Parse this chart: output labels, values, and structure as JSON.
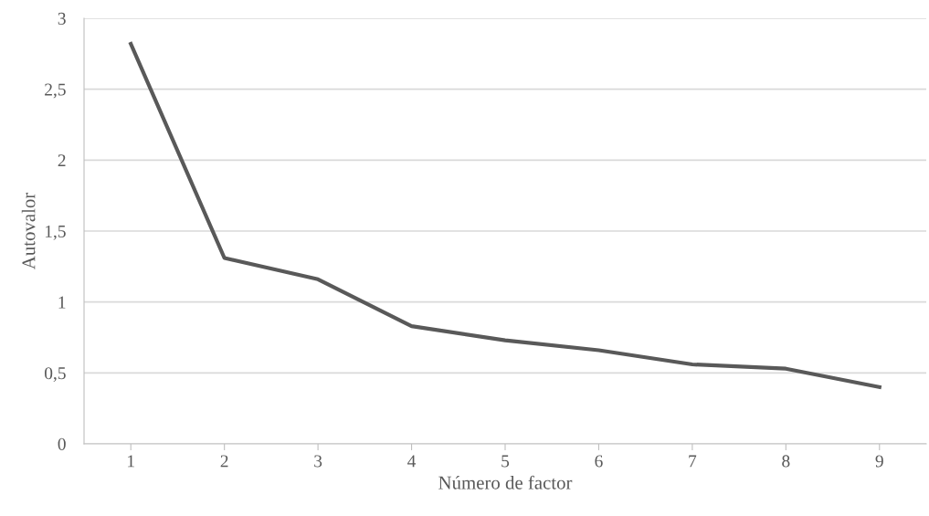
{
  "chart_data": {
    "type": "line",
    "xlabel": "Número de factor",
    "ylabel": "Autovalor",
    "categories": [
      "1",
      "2",
      "3",
      "4",
      "5",
      "6",
      "7",
      "8",
      "9"
    ],
    "series": [
      {
        "color": "#595959",
        "values": [
          2.82,
          1.31,
          1.16,
          0.83,
          0.73,
          0.66,
          0.56,
          0.53,
          0.4
        ]
      }
    ],
    "ylim": [
      0,
      3
    ],
    "yticks": [
      {
        "value": 0,
        "label": "0"
      },
      {
        "value": 0.5,
        "label": "0,5"
      },
      {
        "value": 1,
        "label": "1"
      },
      {
        "value": 1.5,
        "label": "1,5"
      },
      {
        "value": 2,
        "label": "2"
      },
      {
        "value": 2.5,
        "label": "2,5"
      },
      {
        "value": 3,
        "label": "3"
      }
    ],
    "grid": "y",
    "line_style": "solid",
    "legend": false
  }
}
